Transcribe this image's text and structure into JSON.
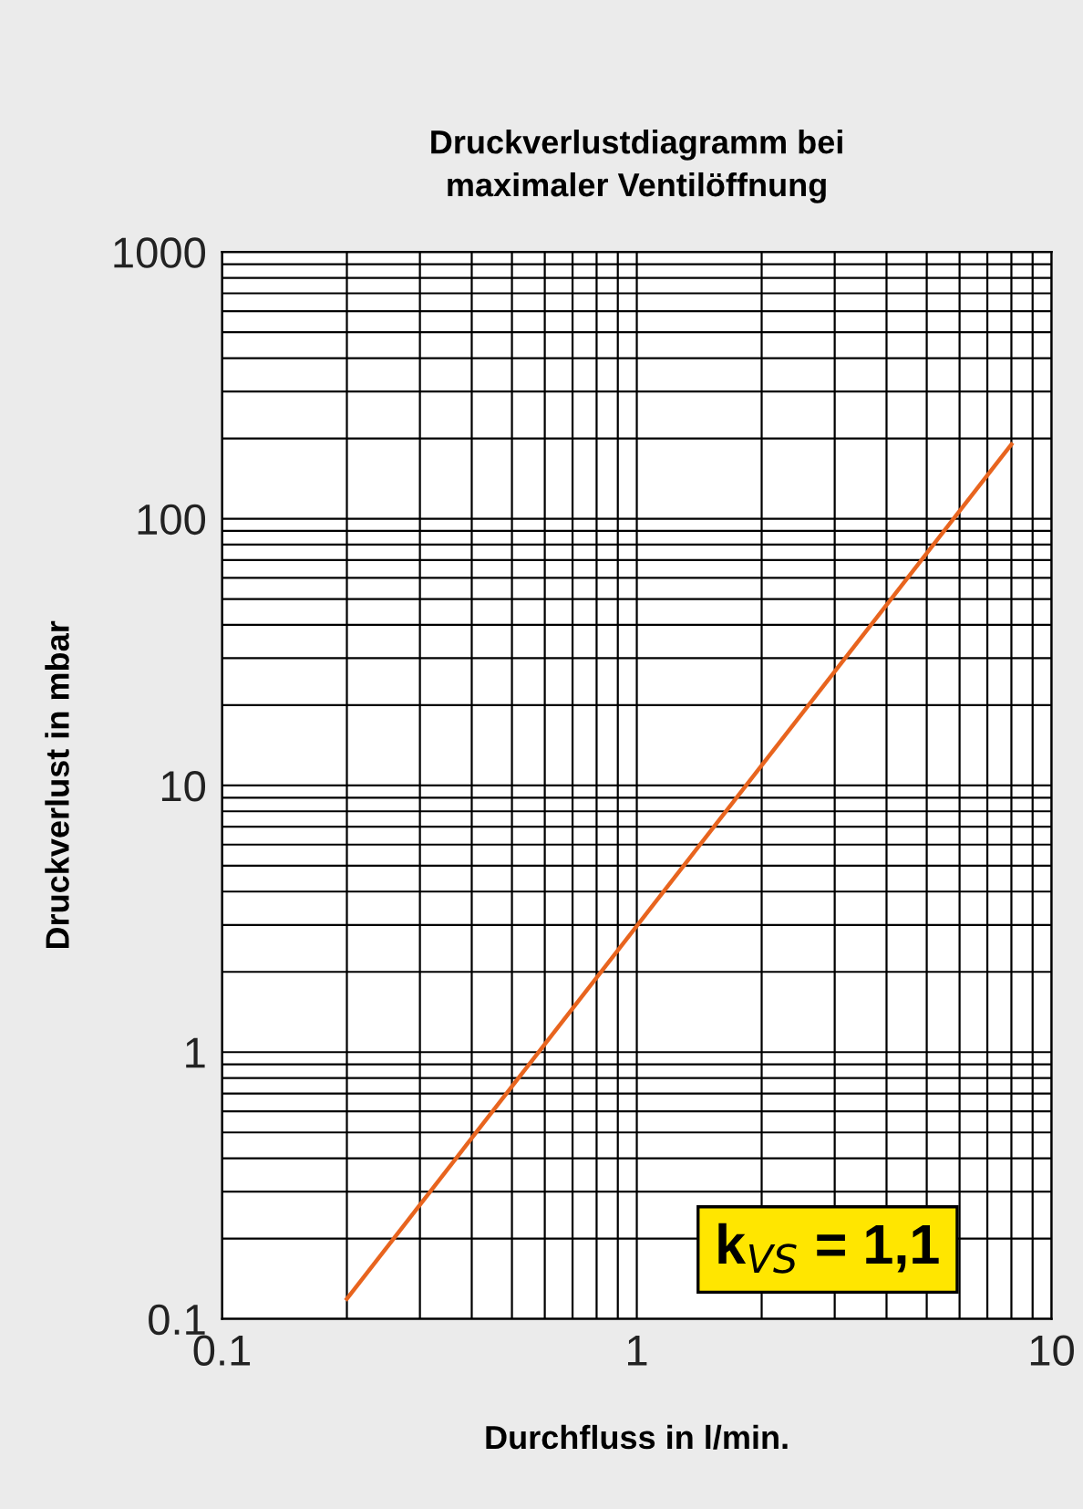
{
  "chart_data": {
    "type": "line",
    "title": "Druckverlustdiagramm bei\nmaximaler Ventilöffnung",
    "xlabel": "Durchfluss in l/min.",
    "ylabel": "Druckverlust in mbar",
    "series": [
      {
        "x": [
          0.2,
          8
        ],
        "values": [
          0.119,
          190
        ],
        "color": "#e8641e"
      }
    ],
    "log": "xy",
    "xlim": [
      0.1,
      10
    ],
    "ylim": [
      0.1,
      1000
    ],
    "xticks": [
      0.1,
      1,
      10
    ],
    "yticks": [
      0.1,
      1,
      10,
      100,
      1000
    ],
    "grid": true,
    "marker": "none",
    "line_style": "solid",
    "annotations": [
      "k$_{VS}$ = 1,1"
    ]
  }
}
